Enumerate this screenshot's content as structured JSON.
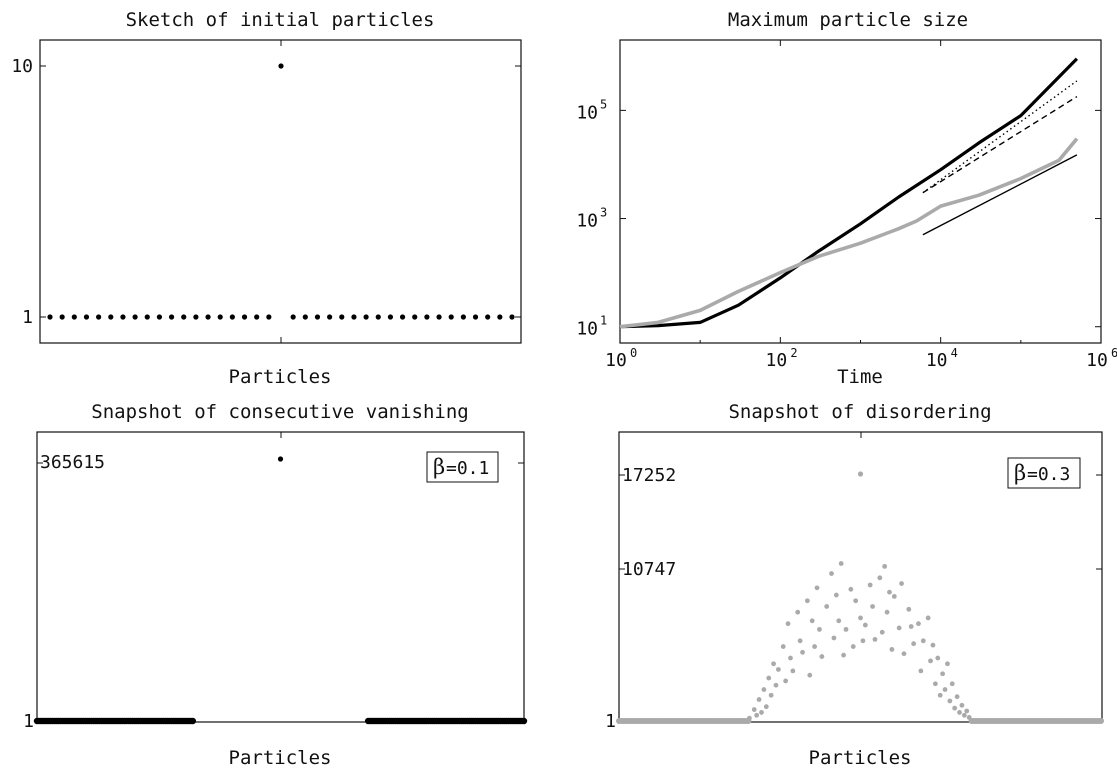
{
  "chart_data": [
    {
      "id": "p1",
      "type": "scatter",
      "title": "Sketch of initial particles",
      "xlabel": "Particles",
      "ylabel": "",
      "yticks": [
        "10",
        "1"
      ],
      "color": "#000000",
      "points": [
        {
          "x": 1,
          "y": 1
        },
        {
          "x": 2,
          "y": 1
        },
        {
          "x": 3,
          "y": 1
        },
        {
          "x": 4,
          "y": 1
        },
        {
          "x": 5,
          "y": 1
        },
        {
          "x": 6,
          "y": 1
        },
        {
          "x": 7,
          "y": 1
        },
        {
          "x": 8,
          "y": 1
        },
        {
          "x": 9,
          "y": 1
        },
        {
          "x": 10,
          "y": 1
        },
        {
          "x": 11,
          "y": 1
        },
        {
          "x": 12,
          "y": 1
        },
        {
          "x": 13,
          "y": 1
        },
        {
          "x": 14,
          "y": 1
        },
        {
          "x": 15,
          "y": 1
        },
        {
          "x": 16,
          "y": 1
        },
        {
          "x": 17,
          "y": 1
        },
        {
          "x": 18,
          "y": 1
        },
        {
          "x": 19,
          "y": 1
        },
        {
          "x": 20,
          "y": 10
        },
        {
          "x": 21,
          "y": 1
        },
        {
          "x": 22,
          "y": 1
        },
        {
          "x": 23,
          "y": 1
        },
        {
          "x": 24,
          "y": 1
        },
        {
          "x": 25,
          "y": 1
        },
        {
          "x": 26,
          "y": 1
        },
        {
          "x": 27,
          "y": 1
        },
        {
          "x": 28,
          "y": 1
        },
        {
          "x": 29,
          "y": 1
        },
        {
          "x": 30,
          "y": 1
        },
        {
          "x": 31,
          "y": 1
        },
        {
          "x": 32,
          "y": 1
        },
        {
          "x": 33,
          "y": 1
        },
        {
          "x": 34,
          "y": 1
        },
        {
          "x": 35,
          "y": 1
        },
        {
          "x": 36,
          "y": 1
        },
        {
          "x": 37,
          "y": 1
        },
        {
          "x": 38,
          "y": 1
        },
        {
          "x": 39,
          "y": 1
        }
      ]
    },
    {
      "id": "p2",
      "type": "line",
      "title": "Maximum particle size",
      "xlabel": "Time",
      "ylabel": "",
      "x_scale": "log",
      "y_scale": "log",
      "xlim": [
        1,
        1000000
      ],
      "ylim": [
        5,
        2000000
      ],
      "xticks": [
        {
          "base": "10",
          "exp": "0"
        },
        {
          "base": "10",
          "exp": "2"
        },
        {
          "base": "10",
          "exp": "4"
        },
        {
          "base": "10",
          "exp": "6"
        }
      ],
      "yticks": [
        {
          "base": "10",
          "exp": "1"
        },
        {
          "base": "10",
          "exp": "3"
        },
        {
          "base": "10",
          "exp": "5"
        }
      ],
      "series": [
        {
          "style": "thick-black",
          "color": "#000000",
          "x": [
            1,
            3,
            10,
            30,
            100,
            300,
            1000,
            3000,
            10000,
            30000,
            100000,
            500000
          ],
          "y": [
            10,
            10.5,
            12,
            25,
            80,
            250,
            800,
            2500,
            8000,
            25000,
            80000,
            900000
          ]
        },
        {
          "style": "thick-gray",
          "color": "#aaaaaa",
          "x": [
            1,
            3,
            10,
            30,
            100,
            300,
            1000,
            3000,
            5000,
            10000,
            30000,
            100000,
            300000,
            500000
          ],
          "y": [
            10,
            12,
            20,
            45,
            100,
            200,
            350,
            650,
            900,
            1700,
            2700,
            5500,
            12000,
            30000
          ]
        },
        {
          "style": "dotted",
          "color": "#000000",
          "x": [
            6000,
            500000
          ],
          "y": [
            3000,
            350000
          ]
        },
        {
          "style": "dashed",
          "color": "#000000",
          "x": [
            6000,
            500000
          ],
          "y": [
            3000,
            180000
          ]
        },
        {
          "style": "thin",
          "color": "#000000",
          "x": [
            6000,
            500000
          ],
          "y": [
            500,
            15000
          ]
        }
      ]
    },
    {
      "id": "p3",
      "type": "scatter",
      "title": "Snapshot of consecutive vanishing",
      "xlabel": "Particles",
      "ylabel": "",
      "yticks": [
        "365615",
        "1"
      ],
      "annotation": {
        "symbol": "β",
        "text": "=0.1"
      },
      "color": "#000000",
      "base_ranges": [
        [
          0,
          0.32
        ],
        [
          0.68,
          1
        ]
      ],
      "peak": {
        "x": 0.5,
        "y": 365615
      },
      "ylim": [
        1,
        365615
      ]
    },
    {
      "id": "p4",
      "type": "scatter",
      "title": "Snapshot of disordering",
      "xlabel": "Particles",
      "ylabel": "",
      "yticks": [
        "17252",
        "10747",
        "1"
      ],
      "annotation": {
        "symbol": "β",
        "text": "=0.3"
      },
      "color": "#aaaaaa",
      "base_ranges": [
        [
          0,
          0.27
        ],
        [
          0.73,
          1
        ]
      ],
      "peak": {
        "x": 0.5,
        "y": 17252
      },
      "ylim": [
        1,
        17252
      ],
      "points": [
        {
          "x": 0.27,
          "y": 200
        },
        {
          "x": 0.28,
          "y": 800
        },
        {
          "x": 0.285,
          "y": 400
        },
        {
          "x": 0.29,
          "y": 1500
        },
        {
          "x": 0.295,
          "y": 600
        },
        {
          "x": 0.3,
          "y": 2200
        },
        {
          "x": 0.305,
          "y": 1000
        },
        {
          "x": 0.31,
          "y": 3000
        },
        {
          "x": 0.315,
          "y": 1800
        },
        {
          "x": 0.32,
          "y": 4000
        },
        {
          "x": 0.325,
          "y": 2500
        },
        {
          "x": 0.33,
          "y": 3600
        },
        {
          "x": 0.34,
          "y": 5200
        },
        {
          "x": 0.345,
          "y": 2800
        },
        {
          "x": 0.35,
          "y": 6800
        },
        {
          "x": 0.355,
          "y": 4400
        },
        {
          "x": 0.36,
          "y": 3500
        },
        {
          "x": 0.37,
          "y": 7600
        },
        {
          "x": 0.375,
          "y": 5600
        },
        {
          "x": 0.38,
          "y": 4800
        },
        {
          "x": 0.39,
          "y": 8400
        },
        {
          "x": 0.395,
          "y": 3200
        },
        {
          "x": 0.4,
          "y": 7000
        },
        {
          "x": 0.405,
          "y": 5200
        },
        {
          "x": 0.41,
          "y": 9300
        },
        {
          "x": 0.415,
          "y": 6400
        },
        {
          "x": 0.42,
          "y": 4500
        },
        {
          "x": 0.43,
          "y": 8000
        },
        {
          "x": 0.44,
          "y": 10300
        },
        {
          "x": 0.445,
          "y": 5800
        },
        {
          "x": 0.45,
          "y": 8800
        },
        {
          "x": 0.455,
          "y": 7000
        },
        {
          "x": 0.46,
          "y": 11000
        },
        {
          "x": 0.465,
          "y": 4600
        },
        {
          "x": 0.47,
          "y": 6400
        },
        {
          "x": 0.48,
          "y": 9200
        },
        {
          "x": 0.485,
          "y": 5200
        },
        {
          "x": 0.49,
          "y": 8400
        },
        {
          "x": 0.5,
          "y": 7200
        },
        {
          "x": 0.505,
          "y": 5600
        },
        {
          "x": 0.51,
          "y": 6700
        },
        {
          "x": 0.52,
          "y": 9500
        },
        {
          "x": 0.525,
          "y": 8000
        },
        {
          "x": 0.53,
          "y": 5700
        },
        {
          "x": 0.54,
          "y": 10000
        },
        {
          "x": 0.545,
          "y": 6200
        },
        {
          "x": 0.55,
          "y": 10800
        },
        {
          "x": 0.555,
          "y": 7600
        },
        {
          "x": 0.56,
          "y": 9000
        },
        {
          "x": 0.565,
          "y": 5000
        },
        {
          "x": 0.57,
          "y": 8700
        },
        {
          "x": 0.58,
          "y": 6500
        },
        {
          "x": 0.585,
          "y": 9600
        },
        {
          "x": 0.59,
          "y": 4700
        },
        {
          "x": 0.6,
          "y": 7800
        },
        {
          "x": 0.605,
          "y": 6600
        },
        {
          "x": 0.61,
          "y": 5400
        },
        {
          "x": 0.62,
          "y": 6800
        },
        {
          "x": 0.625,
          "y": 3500
        },
        {
          "x": 0.63,
          "y": 5600
        },
        {
          "x": 0.64,
          "y": 7200
        },
        {
          "x": 0.645,
          "y": 4200
        },
        {
          "x": 0.65,
          "y": 5300
        },
        {
          "x": 0.655,
          "y": 2600
        },
        {
          "x": 0.66,
          "y": 4400
        },
        {
          "x": 0.665,
          "y": 1800
        },
        {
          "x": 0.67,
          "y": 3300
        },
        {
          "x": 0.675,
          "y": 2200
        },
        {
          "x": 0.68,
          "y": 4000
        },
        {
          "x": 0.685,
          "y": 1400
        },
        {
          "x": 0.69,
          "y": 2600
        },
        {
          "x": 0.695,
          "y": 900
        },
        {
          "x": 0.7,
          "y": 1700
        },
        {
          "x": 0.705,
          "y": 600
        },
        {
          "x": 0.71,
          "y": 1100
        },
        {
          "x": 0.715,
          "y": 400
        },
        {
          "x": 0.72,
          "y": 700
        },
        {
          "x": 0.725,
          "y": 250
        }
      ]
    }
  ]
}
